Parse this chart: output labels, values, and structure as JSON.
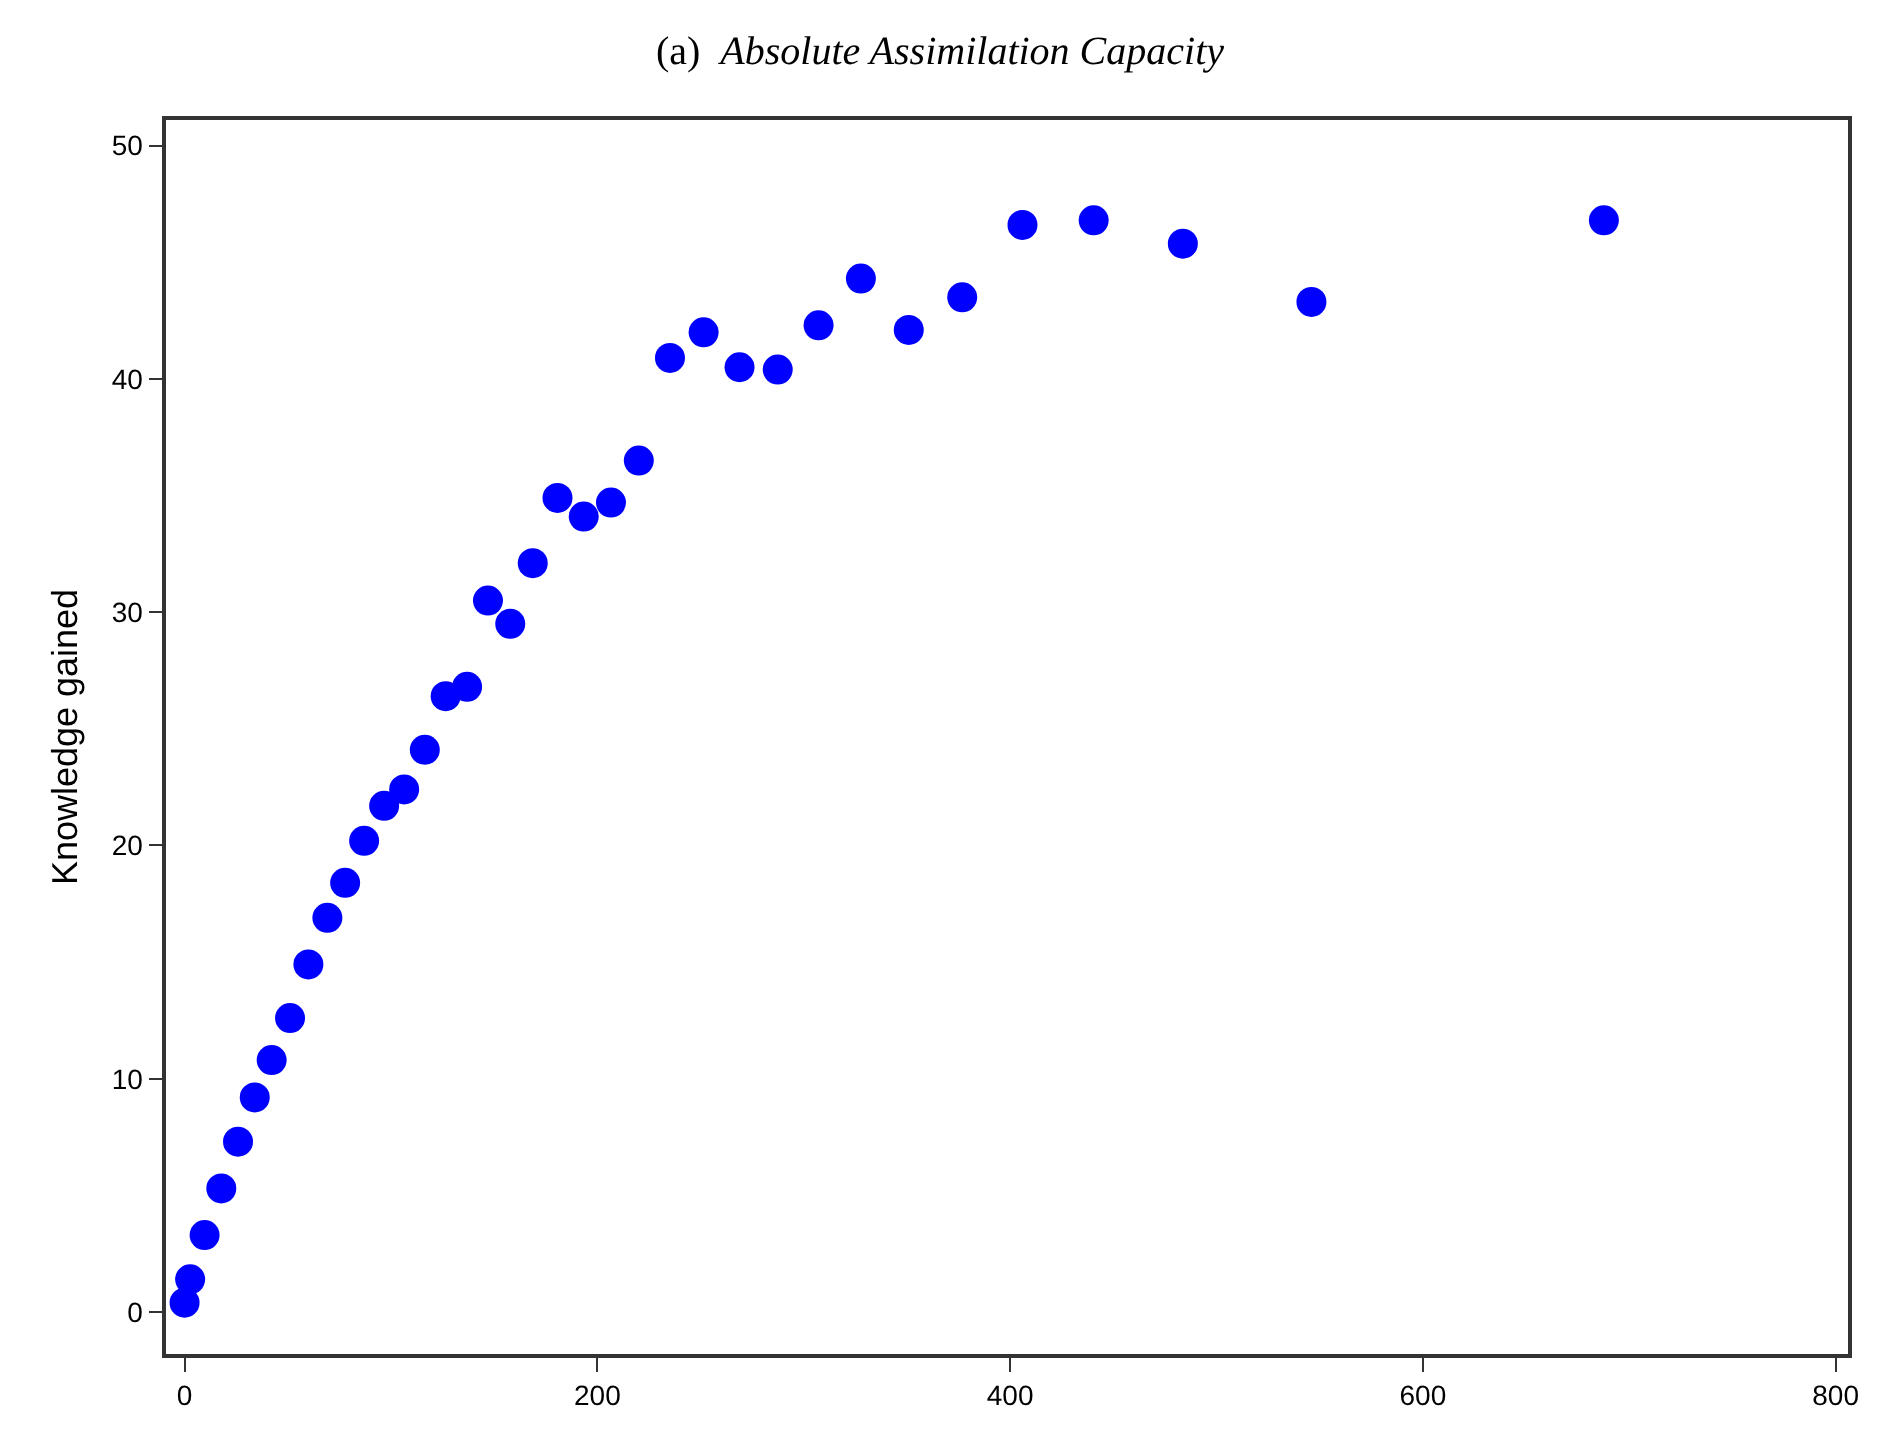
{
  "chart_data": {
    "type": "scatter",
    "title": "(a)  Absolute Assimilation Capacity",
    "ylabel": "Knowledge gained",
    "x": [
      0,
      2.7,
      9.7,
      17.8,
      25.9,
      34,
      42.2,
      51.1,
      60,
      69.2,
      77.8,
      87,
      96.7,
      106.4,
      116.4,
      126.5,
      136.9,
      147,
      157.8,
      168.7,
      180.7,
      193.4,
      206.6,
      220.1,
      235.2,
      251.5,
      268.9,
      287.4,
      307.2,
      327.7,
      350.9,
      376.8,
      406,
      440.5,
      483.7,
      546,
      687.7
    ],
    "series": [
      {
        "color": "#0000ff",
        "values": [
          0.4,
          1.4,
          3.3,
          5.3,
          7.3,
          9.2,
          10.8,
          12.6,
          14.9,
          16.9,
          18.4,
          20.2,
          21.7,
          22.4,
          24.1,
          26.4,
          26.8,
          30.5,
          29.5,
          32.1,
          34.9,
          34.1,
          34.7,
          36.5,
          40.9,
          42,
          40.5,
          40.4,
          42.3,
          44.3,
          42.1,
          43.5,
          46.6,
          46.8,
          45.8,
          43.3,
          46.8
        ]
      }
    ],
    "xlim": [
      -9,
      806
    ],
    "xticks": [
      0,
      200,
      400,
      600,
      800
    ],
    "ylim": [
      -1.8,
      51.1
    ],
    "yticks": [
      0,
      10,
      20,
      30,
      40,
      50
    ],
    "marker": "circle"
  }
}
